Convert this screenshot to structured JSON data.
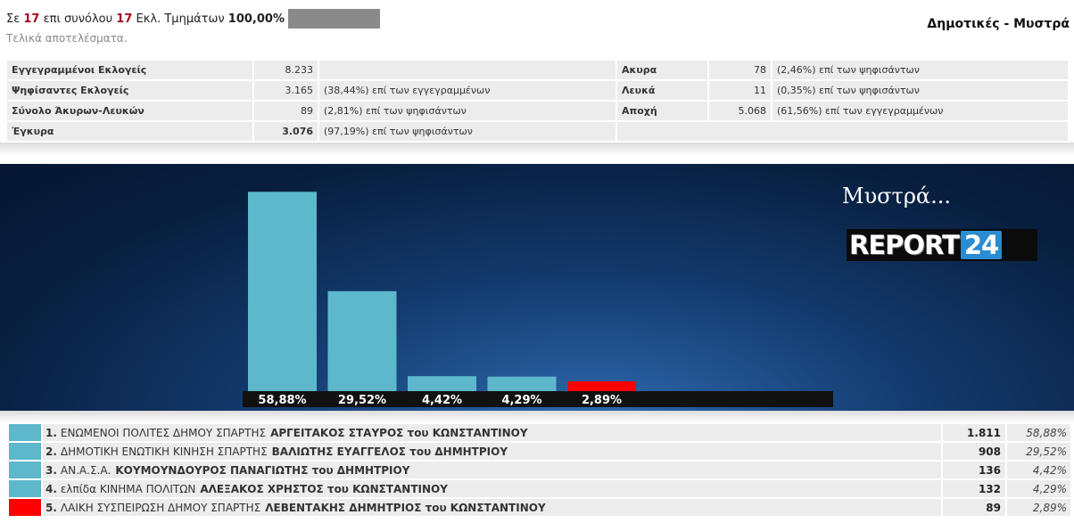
{
  "header": {
    "prefix": "Σε",
    "counted": "17",
    "mid": "επι συνόλου",
    "total": "17",
    "units_label": "Εκλ. Τμημάτων",
    "percent": "100,00%",
    "progress": 1.0,
    "subtitle": "Τελικά αποτελέσματα.",
    "region_title": "Δημοτικές - Μυστρά"
  },
  "stats": {
    "left": [
      {
        "label": "Εγγεγραμμένοι Εκλογείς",
        "value": "8.233",
        "note": ""
      },
      {
        "label": "Ψηφίσαντες Εκλογείς",
        "value": "3.165",
        "note": "(38,44%) επί των εγγεγραμμένων"
      },
      {
        "label": "Σύνολο Άκυρων-Λευκών",
        "value": "89",
        "note": "(2,81%) επί των ψηφισάντων"
      },
      {
        "label": "Έγκυρα",
        "value": "3.076",
        "note": "(97,19%) επί των ψηφισάντων"
      }
    ],
    "right": [
      {
        "label": "Ακυρα",
        "value": "78",
        "note": "(2,46%) επί των ψηφισάντων"
      },
      {
        "label": "Λευκά",
        "value": "11",
        "note": "(0,35%) επί των ψηφισάντων"
      },
      {
        "label": "Αποχή",
        "value": "5.068",
        "note": "(61,56%) επί των εγγεγραμμένων"
      }
    ]
  },
  "chart_caption": "Μυστρά...",
  "logo": {
    "word": "REPORT",
    "num": "24"
  },
  "colors": {
    "bar": "#5db8cc",
    "bar_last": "#ff0000",
    "label_band": "#111111"
  },
  "chart_data": {
    "type": "bar",
    "categories": [
      "1",
      "2",
      "3",
      "4",
      "5"
    ],
    "values": [
      58.88,
      29.52,
      4.42,
      4.29,
      2.89
    ],
    "labels": [
      "58,88%",
      "29,52%",
      "4,42%",
      "4,29%",
      "2,89%"
    ],
    "colors": [
      "#5db8cc",
      "#5db8cc",
      "#5db8cc",
      "#5db8cc",
      "#ff0000"
    ],
    "ylim": [
      0,
      65
    ],
    "title": "",
    "xlabel": "",
    "ylabel": ""
  },
  "results": [
    {
      "rank": "1.",
      "party": "ΕΝΩΜΕΝΟΙ ΠΟΛΙΤΕΣ ΔΗΜΟΥ ΣΠΑΡΤΗΣ",
      "candidate": "ΑΡΓΕΙΤΑΚΟΣ ΣΤΑΥΡΟΣ του ΚΩΝΣΤΑΝΤΙΝΟΥ",
      "votes": "1.811",
      "pct": "58,88%",
      "color": "#5db8cc"
    },
    {
      "rank": "2.",
      "party": "ΔΗΜΟΤΙΚΗ ΕΝΩΤΙΚΗ ΚΙΝΗΣΗ ΣΠΑΡΤΗΣ",
      "candidate": "ΒΑΛΙΩΤΗΣ ΕΥΑΓΓΕΛΟΣ του ΔΗΜΗΤΡΙΟΥ",
      "votes": "908",
      "pct": "29,52%",
      "color": "#5db8cc"
    },
    {
      "rank": "3.",
      "party": "ΑΝ.Α.Σ.Α.",
      "candidate": "ΚΟΥΜΟΥΝΔΟΥΡΟΣ ΠΑΝΑΓΙΩΤΗΣ του ΔΗΜΗΤΡΙΟΥ",
      "votes": "136",
      "pct": "4,42%",
      "color": "#5db8cc"
    },
    {
      "rank": "4.",
      "party": "ελπίδα ΚΙΝΗΜΑ ΠΟΛΙΤΩΝ",
      "candidate": "ΑΛΕΞΑΚΟΣ ΧΡΗΣΤΟΣ του ΚΩΝΣΤΑΝΤΙΝΟΥ",
      "votes": "132",
      "pct": "4,29%",
      "color": "#5db8cc"
    },
    {
      "rank": "5.",
      "party": "ΛΑΙΚΗ ΣΥΣΠΕΙΡΩΣΗ ΔΗΜΟΥ ΣΠΑΡΤΗΣ",
      "candidate": "ΛΕΒΕΝΤΑΚΗΣ ΔΗΜΗΤΡΙΟΣ του ΚΩΝΣΤΑΝΤΙΝΟΥ",
      "votes": "89",
      "pct": "2,89%",
      "color": "#ff0000"
    }
  ]
}
